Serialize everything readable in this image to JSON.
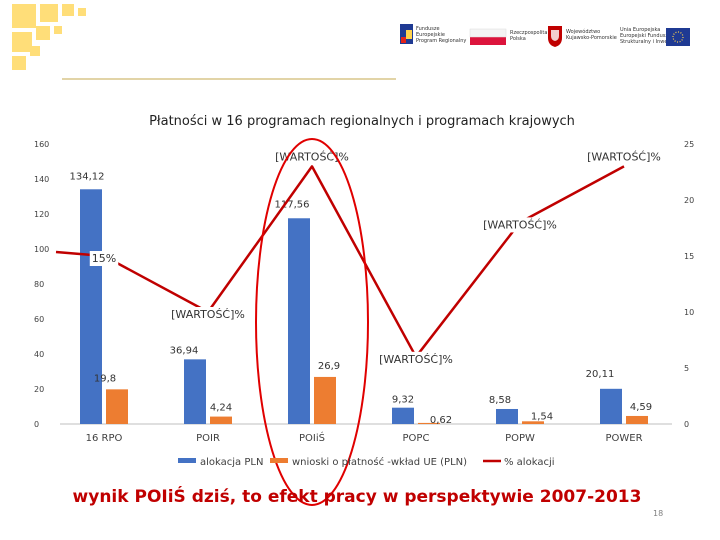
{
  "logos": {
    "fundusze": [
      "Fundusze",
      "Europejskie",
      "Program Regionalny"
    ],
    "rp": [
      "Rzeczpospolita",
      "Polska"
    ],
    "wojewodztwo": [
      "Województwo",
      "Kujawsko-Pomorskie"
    ],
    "ue": [
      "Unia Europejska",
      "Europejski Fundusz",
      "Strukturalny i Inwestycyjny"
    ]
  },
  "chart_data": {
    "type": "bar",
    "title": "Płatności w 16 programach regionalnych i programach krajowych",
    "categories": [
      "16 RPO",
      "POIR",
      "POIiŚ",
      "POPC",
      "POPW",
      "POWER"
    ],
    "series": [
      {
        "name": "alokacja PLN",
        "type": "bar",
        "axis": "left",
        "color": "#4472c4",
        "values": [
          134.12,
          36.94,
          117.56,
          9.32,
          8.58,
          20.11
        ],
        "labels": [
          "134,12",
          "36,94",
          "117,56",
          "9,32",
          "8,58",
          "20,11"
        ]
      },
      {
        "name": "wnioski o płatność -wkład UE (PLN)",
        "type": "bar",
        "axis": "left",
        "color": "#ed7d31",
        "values": [
          19.8,
          4.24,
          26.9,
          0.62,
          1.54,
          4.59
        ],
        "labels": [
          "19,8",
          "4,24",
          "26,9",
          "0,62",
          "1,54",
          "4,59"
        ]
      },
      {
        "name": "% alokacji",
        "type": "line",
        "axis": "right",
        "color": "#c00000",
        "values": [
          15,
          10,
          23,
          6,
          18,
          23
        ],
        "labels": [
          "15%",
          "[WARTOŚĆ]%",
          "[WARTOŚĆ]%",
          "[WARTOŚĆ]%",
          "[WARTOŚĆ]%",
          "[WARTOŚĆ]%"
        ]
      }
    ],
    "y_left": {
      "min": 0,
      "max": 160,
      "ticks": [
        0,
        20,
        40,
        60,
        80,
        100,
        120,
        140,
        160
      ]
    },
    "y_right": {
      "min": 0,
      "max": 25,
      "ticks": [
        0,
        5,
        10,
        15,
        20,
        25
      ]
    },
    "grid": false,
    "legend_position": "bottom",
    "annotation": "wynik POIiŚ dziś, to efekt pracy w perspektywie 2007-2013",
    "highlight": "POIiŚ",
    "page_number": "18"
  }
}
